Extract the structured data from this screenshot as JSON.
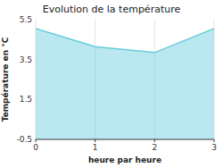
{
  "chart_data": {
    "type": "area",
    "title": "Evolution de la température",
    "xlabel": "heure par heure",
    "ylabel": "Température en °C",
    "x": [
      0,
      1,
      2,
      3
    ],
    "values": [
      5.05,
      4.15,
      3.85,
      5.05
    ],
    "color": "#66ccdd",
    "xlim": [
      0,
      3
    ],
    "ylim": [
      -0.5,
      5.5
    ],
    "xticks": [
      0,
      1,
      2,
      3
    ],
    "yticks": [
      -0.5,
      1.5,
      3.5,
      5.5
    ],
    "grid": "x"
  }
}
